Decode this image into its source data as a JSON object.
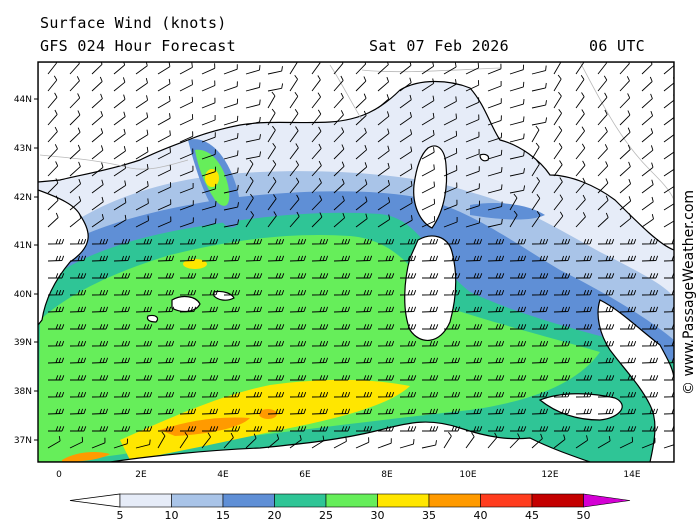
{
  "header": {
    "title": "Surface Wind (knots)",
    "model": "GFS 024 Hour Forecast",
    "date": "Sat 07 Feb 2026",
    "time": "06 UTC"
  },
  "credit": "© www.PassageWeather.com",
  "axes": {
    "lat_labels": [
      "44N",
      "43N",
      "42N",
      "41N",
      "40N",
      "39N",
      "38N",
      "37N"
    ],
    "lon_labels": [
      "0",
      "2E",
      "4E",
      "6E",
      "8E",
      "10E",
      "12E",
      "14E"
    ]
  },
  "colorbar": {
    "labels": [
      "5",
      "10",
      "15",
      "20",
      "25",
      "30",
      "35",
      "40",
      "45",
      "50"
    ],
    "colors": [
      "#e6ecf8",
      "#a9c4e8",
      "#5f8fd6",
      "#2fc596",
      "#66ee5a",
      "#ffe600",
      "#ff9a00",
      "#ff3c1e",
      "#c40000",
      "#d400d4"
    ]
  },
  "colors": {
    "land": "#ffffff",
    "coast": "#000000"
  }
}
